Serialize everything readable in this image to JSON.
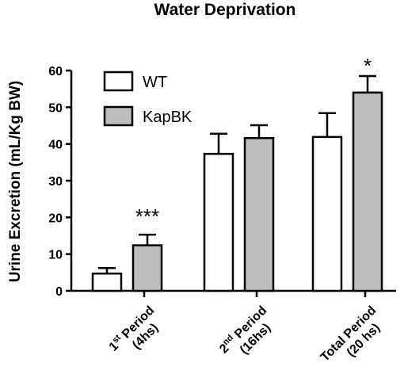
{
  "chart_data": {
    "type": "bar",
    "title": "Water Deprivation",
    "ylabel": "Urine Excretion (mL/Kg BW)",
    "xlabel": "",
    "ylim": [
      0,
      60
    ],
    "yticks": [
      0,
      10,
      20,
      30,
      40,
      50,
      60
    ],
    "grid": false,
    "legend_position": "top-left",
    "categories": [
      {
        "line1_main": "1",
        "line1_sup": "st",
        "line1_rest": " Period",
        "line2": "(4hs)"
      },
      {
        "line1_main": "2",
        "line1_sup": "nd",
        "line1_rest": " Period",
        "line2": "(16hs)"
      },
      {
        "line1_main": "Total Period",
        "line1_sup": "",
        "line1_rest": "",
        "line2": "(20 hs)"
      }
    ],
    "series": [
      {
        "name": "WT",
        "color": "#ffffff",
        "values": [
          4.7,
          37.3,
          41.9
        ],
        "errors": [
          1.5,
          5.5,
          6.5
        ]
      },
      {
        "name": "KapBK",
        "color": "#bdbdbd",
        "values": [
          12.4,
          41.6,
          54.0
        ],
        "errors": [
          2.9,
          3.5,
          4.5
        ]
      }
    ],
    "annotations": [
      {
        "category_index": 0,
        "series_index": 1,
        "text": "***"
      },
      {
        "category_index": 2,
        "series_index": 1,
        "text": "*"
      }
    ]
  }
}
